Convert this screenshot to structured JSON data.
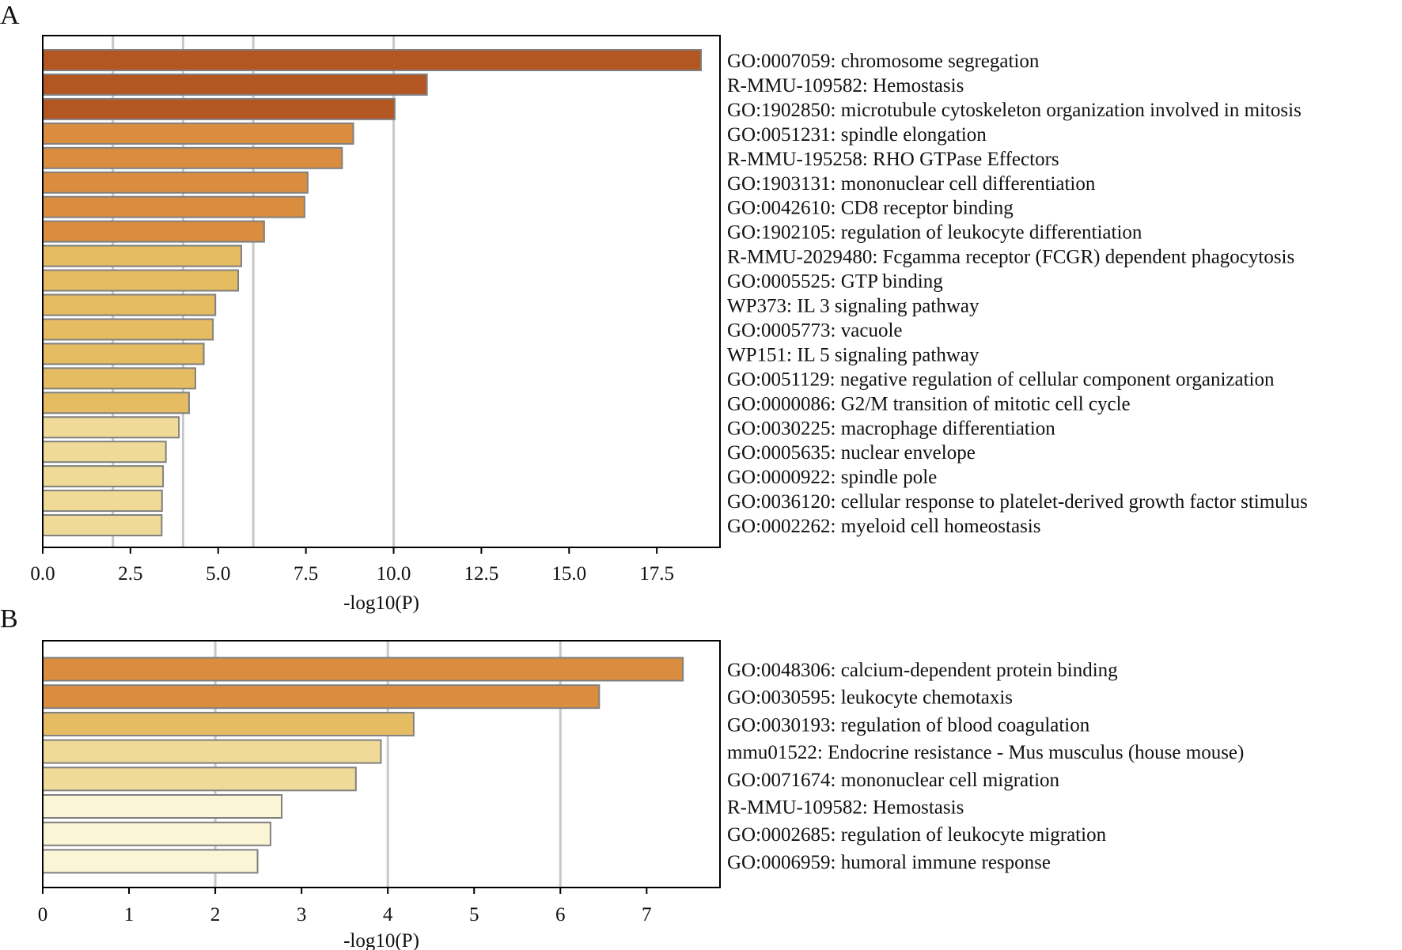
{
  "chart_data": [
    {
      "type": "bar",
      "orientation": "horizontal",
      "panel_label": "A",
      "xlabel": "-log10(P)",
      "xlim": [
        0,
        19.3
      ],
      "xticks": [
        "0.0",
        "2.5",
        "5.0",
        "7.5",
        "10.0",
        "12.5",
        "15.0",
        "17.5"
      ],
      "xtick_values": [
        0,
        2.5,
        5,
        7.5,
        10,
        12.5,
        15,
        17.5
      ],
      "gridlines": [
        2,
        4,
        6,
        10
      ],
      "categories": [
        "GO:0007059: chromosome segregation",
        "R-MMU-109582: Hemostasis",
        "GO:1902850: microtubule cytoskeleton organization involved in mitosis",
        "GO:0051231: spindle elongation",
        "R-MMU-195258: RHO GTPase Effectors",
        "GO:1903131: mononuclear cell differentiation",
        "GO:0042610: CD8 receptor binding",
        "GO:1902105: regulation of leukocyte differentiation",
        "R-MMU-2029480: Fcgamma receptor (FCGR) dependent phagocytosis",
        "GO:0005525: GTP binding",
        "WP373: IL 3 signaling pathway",
        "GO:0005773: vacuole",
        "WP151: IL 5 signaling pathway",
        "GO:0051129: negative regulation of cellular component organization",
        "GO:0000086: G2/M transition of mitotic cell cycle",
        "GO:0030225: macrophage differentiation",
        "GO:0005635: nuclear envelope",
        "GO:0000922: spindle pole",
        "GO:0036120: cellular response to platelet-derived growth factor stimulus",
        "GO:0002262: myeloid cell homeostasis"
      ],
      "values": [
        18.76,
        10.95,
        10.03,
        8.85,
        8.53,
        7.55,
        7.46,
        6.31,
        5.66,
        5.57,
        4.92,
        4.85,
        4.59,
        4.35,
        4.17,
        3.88,
        3.51,
        3.43,
        3.4,
        3.39
      ],
      "colors": [
        "#B35722",
        "#B35722",
        "#B35722",
        "#DA8D3F",
        "#DA8D3F",
        "#DA8D3F",
        "#DA8D3F",
        "#DA8D3F",
        "#E6BC62",
        "#E6BC62",
        "#E6BC62",
        "#E6BC62",
        "#E6BC62",
        "#E6BC62",
        "#E6BC62",
        "#F0DA98",
        "#F0DA98",
        "#F0DA98",
        "#F0DA98",
        "#F0DA98"
      ]
    },
    {
      "type": "bar",
      "orientation": "horizontal",
      "panel_label": "B",
      "xlabel": "-log10(P)",
      "xlim": [
        0,
        7.85
      ],
      "xticks": [
        "0",
        "1",
        "2",
        "3",
        "4",
        "5",
        "6",
        "7"
      ],
      "xtick_values": [
        0,
        1,
        2,
        3,
        4,
        5,
        6,
        7
      ],
      "gridlines": [
        2,
        4,
        6
      ],
      "categories": [
        "GO:0048306: calcium-dependent protein binding",
        "GO:0030595: leukocyte chemotaxis",
        "GO:0030193: regulation of blood coagulation",
        "mmu01522: Endocrine resistance - Mus musculus (house mouse)",
        "GO:0071674: mononuclear cell migration",
        "R-MMU-109582: Hemostasis",
        "GO:0002685: regulation of leukocyte migration",
        "GO:0006959: humoral immune response"
      ],
      "values": [
        7.42,
        6.45,
        4.3,
        3.92,
        3.63,
        2.77,
        2.64,
        2.49
      ],
      "colors": [
        "#DA8D3F",
        "#DA8D3F",
        "#E6BC62",
        "#F0DA98",
        "#F0DA98",
        "#FAF5D4",
        "#FAF5D4",
        "#FAF5D4"
      ]
    }
  ],
  "style": {
    "bar_edge": "#808080",
    "grid": "#C8C8C8",
    "axis": "#000000"
  }
}
